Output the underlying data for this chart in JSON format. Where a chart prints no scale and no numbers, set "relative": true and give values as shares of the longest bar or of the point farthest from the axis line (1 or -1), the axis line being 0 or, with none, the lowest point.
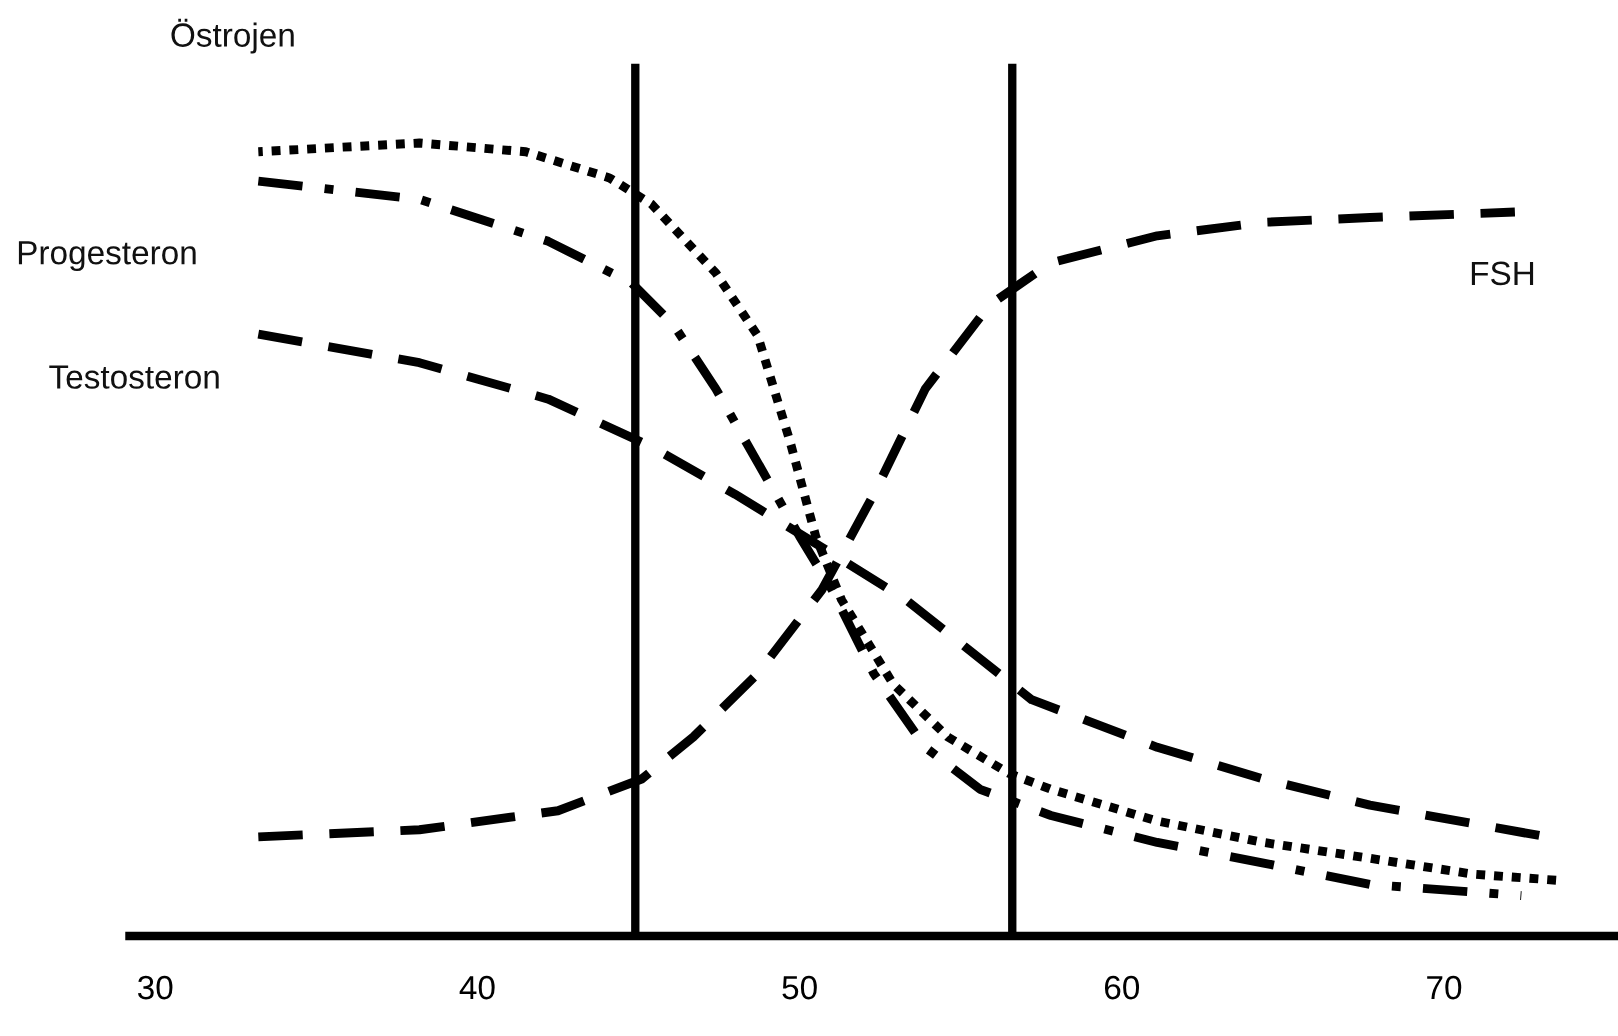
{
  "chart_data": {
    "type": "line",
    "relative": true,
    "xlim": [
      29.2,
      75.4
    ],
    "xticks": [
      30,
      40,
      50,
      60,
      70
    ],
    "grid": false,
    "legend": false,
    "marker": "none",
    "series": [
      {
        "name": "Östrojen",
        "color": "#000000",
        "line_style": "dotted",
        "x": [
          33.2,
          38.2,
          41.5,
          44.1,
          45.4,
          47.4,
          48.7,
          49.7,
          50.5,
          51.3,
          52.9,
          54.6,
          56.5,
          57.8,
          61.1,
          64.4,
          67.7,
          70.9,
          73.6
        ],
        "values": [
          0.989,
          1.0,
          0.989,
          0.956,
          0.923,
          0.836,
          0.757,
          0.624,
          0.504,
          0.424,
          0.318,
          0.251,
          0.205,
          0.185,
          0.145,
          0.118,
          0.098,
          0.078,
          0.07
        ]
      },
      {
        "name": "Progesteron",
        "color": "#000000",
        "line_style": "dashdot",
        "x": [
          33.2,
          38.2,
          42.2,
          44.8,
          46.1,
          47.4,
          48.7,
          50.0,
          51.0,
          52.3,
          53.9,
          55.6,
          57.8,
          61.1,
          64.4,
          67.7,
          72.4
        ],
        "values": [
          0.952,
          0.929,
          0.876,
          0.823,
          0.77,
          0.69,
          0.597,
          0.504,
          0.437,
          0.331,
          0.238,
          0.185,
          0.152,
          0.118,
          0.092,
          0.065,
          0.051
        ]
      },
      {
        "name": "Testosteron",
        "color": "#000000",
        "line_style": "dashed",
        "x": [
          33.2,
          38.2,
          42.2,
          45.4,
          48.0,
          50.7,
          53.3,
          57.2,
          61.1,
          64.4,
          67.7,
          73.2
        ],
        "values": [
          0.759,
          0.723,
          0.677,
          0.617,
          0.557,
          0.49,
          0.424,
          0.298,
          0.238,
          0.198,
          0.165,
          0.125
        ]
      },
      {
        "name": "FSH",
        "color": "#000000",
        "line_style": "dashed",
        "x": [
          33.2,
          38.2,
          42.5,
          45.1,
          46.7,
          48.7,
          50.7,
          52.3,
          53.9,
          55.9,
          57.8,
          61.1,
          64.4,
          67.7,
          72.2
        ],
        "values": [
          0.125,
          0.134,
          0.158,
          0.198,
          0.251,
          0.331,
          0.437,
          0.557,
          0.69,
          0.796,
          0.849,
          0.883,
          0.9,
          0.906,
          0.913
        ]
      }
    ],
    "ref_lines": [
      {
        "axis": "x",
        "value": 44.9,
        "color": "#000000",
        "line_style": "solid"
      },
      {
        "axis": "x",
        "value": 56.6,
        "color": "#000000",
        "line_style": "solid"
      }
    ]
  }
}
